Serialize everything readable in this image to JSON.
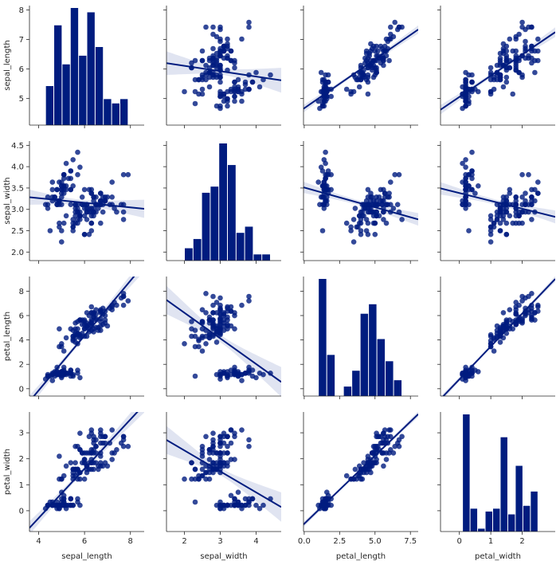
{
  "chart_data": {
    "type": "pairplot",
    "variables": [
      "sepal_length",
      "sepal_width",
      "petal_length",
      "petal_width"
    ],
    "colors": {
      "marks": "#001c7f",
      "ci_band": "#dde1ef",
      "axes": "#262626"
    },
    "axes": [
      {
        "name": "sepal_length",
        "range": [
          3.6,
          8.6
        ],
        "ticks": [
          4,
          6,
          8
        ],
        "diag_ylim": [
          4.1,
          8.15
        ],
        "diag_ticks": [
          5,
          6,
          7,
          8
        ]
      },
      {
        "name": "sepal_width",
        "range": [
          1.5,
          4.7
        ],
        "ticks": [
          2,
          3,
          4
        ],
        "diag_ylim": [
          1.8,
          4.6
        ],
        "diag_ticks": [
          2.0,
          2.5,
          3.0,
          3.5,
          4.0,
          4.5
        ]
      },
      {
        "name": "petal_length",
        "range": [
          -0.05,
          8.05
        ],
        "ticks": [
          0.0,
          2.5,
          5.0,
          7.5
        ],
        "diag_ylim": [
          -0.6,
          9.2
        ],
        "diag_ticks": [
          0,
          2,
          4,
          6,
          8
        ]
      },
      {
        "name": "petal_width",
        "range": [
          -0.6,
          3.05
        ],
        "ticks": [
          0,
          1,
          2
        ],
        "diag_ylim": [
          -0.8,
          3.8
        ],
        "diag_ticks": [
          0,
          1,
          2,
          3
        ]
      }
    ],
    "histograms": [
      {
        "variable": "sepal_length",
        "bin_edges": [
          4.3,
          4.66,
          5.02,
          5.38,
          5.74,
          6.1,
          6.46,
          6.82,
          7.18,
          7.54,
          7.9
        ],
        "counts": [
          9,
          23,
          14,
          27,
          16,
          26,
          18,
          6,
          5,
          6
        ]
      },
      {
        "variable": "sepal_width",
        "bin_edges": [
          2.0,
          2.24,
          2.48,
          2.72,
          2.96,
          3.2,
          3.44,
          3.68,
          3.92,
          4.16,
          4.4
        ],
        "counts": [
          4,
          7,
          22,
          24,
          38,
          31,
          9,
          11,
          2,
          2
        ]
      },
      {
        "variable": "petal_length",
        "bin_edges": [
          1.0,
          1.59,
          2.18,
          2.77,
          3.36,
          3.95,
          4.54,
          5.13,
          5.72,
          6.31,
          6.9
        ],
        "counts": [
          37,
          13,
          0,
          3,
          8,
          26,
          29,
          18,
          11,
          5
        ]
      },
      {
        "variable": "petal_width",
        "bin_edges": [
          0.1,
          0.34,
          0.58,
          0.82,
          1.06,
          1.3,
          1.54,
          1.78,
          2.02,
          2.26,
          2.5
        ],
        "counts": [
          41,
          8,
          1,
          7,
          8,
          33,
          6,
          23,
          9,
          14
        ]
      }
    ],
    "points": {
      "sepal_length": [
        5.1,
        4.9,
        4.7,
        4.6,
        5.0,
        5.4,
        4.6,
        5.0,
        4.4,
        4.9,
        5.4,
        4.8,
        4.8,
        4.3,
        5.8,
        5.7,
        5.4,
        5.1,
        5.7,
        5.1,
        5.4,
        5.1,
        4.6,
        5.1,
        4.8,
        5.0,
        5.0,
        5.2,
        5.2,
        4.7,
        4.8,
        5.4,
        5.2,
        5.5,
        4.9,
        5.0,
        5.5,
        4.9,
        4.4,
        5.1,
        5.0,
        4.5,
        4.4,
        5.0,
        5.1,
        4.8,
        5.1,
        4.6,
        5.3,
        5.0,
        7.0,
        6.4,
        6.9,
        5.5,
        6.5,
        5.7,
        6.3,
        4.9,
        6.6,
        5.2,
        5.0,
        5.9,
        6.0,
        6.1,
        5.6,
        6.7,
        5.6,
        5.8,
        6.2,
        5.6,
        5.9,
        6.1,
        6.3,
        6.1,
        6.4,
        6.6,
        6.8,
        6.7,
        6.0,
        5.7,
        5.5,
        5.5,
        5.8,
        6.0,
        5.4,
        6.0,
        6.7,
        6.3,
        5.6,
        5.5,
        5.5,
        6.1,
        5.8,
        5.0,
        5.6,
        5.7,
        5.7,
        6.2,
        5.1,
        5.7,
        6.3,
        5.8,
        7.1,
        6.3,
        6.5,
        7.6,
        4.9,
        7.3,
        6.7,
        7.2,
        6.5,
        6.4,
        6.8,
        5.7,
        5.8,
        6.4,
        6.5,
        7.7,
        7.7,
        6.0,
        6.9,
        5.6,
        7.7,
        6.3,
        6.7,
        7.2,
        6.2,
        6.1,
        6.4,
        7.2,
        7.4,
        7.9,
        6.4,
        6.3,
        6.1,
        7.7,
        6.3,
        6.4,
        6.0,
        6.9,
        6.7,
        6.9,
        5.8,
        6.8,
        6.7,
        6.7,
        6.3,
        6.5,
        6.2,
        5.9
      ],
      "sepal_width": [
        3.5,
        3.0,
        3.2,
        3.1,
        3.6,
        3.9,
        3.4,
        3.4,
        2.9,
        3.1,
        3.7,
        3.4,
        3.0,
        3.0,
        4.0,
        4.4,
        3.9,
        3.5,
        3.8,
        3.8,
        3.4,
        3.7,
        3.6,
        3.3,
        3.4,
        3.0,
        3.4,
        3.5,
        3.4,
        3.2,
        3.1,
        3.4,
        4.1,
        4.2,
        3.1,
        3.2,
        3.5,
        3.6,
        3.0,
        3.4,
        3.5,
        2.3,
        3.2,
        3.5,
        3.8,
        3.0,
        3.8,
        3.2,
        3.7,
        3.3,
        3.2,
        3.2,
        3.1,
        2.3,
        2.8,
        2.8,
        3.3,
        2.4,
        2.9,
        2.7,
        2.0,
        3.0,
        2.2,
        2.9,
        2.9,
        3.1,
        3.0,
        2.7,
        2.2,
        2.5,
        3.2,
        2.8,
        2.5,
        2.8,
        2.9,
        3.0,
        2.8,
        3.0,
        2.9,
        2.6,
        2.4,
        2.4,
        2.7,
        2.7,
        3.0,
        3.4,
        3.1,
        2.3,
        3.0,
        2.5,
        2.6,
        3.0,
        2.6,
        2.3,
        2.7,
        3.0,
        2.9,
        2.9,
        2.5,
        2.8,
        3.3,
        2.7,
        3.0,
        2.9,
        3.0,
        3.0,
        2.5,
        2.9,
        2.5,
        3.6,
        3.2,
        2.7,
        3.0,
        2.5,
        2.8,
        3.2,
        3.0,
        3.8,
        2.6,
        2.2,
        3.2,
        2.8,
        2.8,
        2.7,
        3.3,
        3.2,
        2.8,
        3.0,
        2.8,
        3.0,
        2.8,
        3.8,
        2.8,
        2.8,
        2.6,
        3.0,
        3.4,
        3.1,
        3.0,
        3.1,
        3.1,
        3.1,
        2.7,
        3.2,
        3.3,
        3.0,
        2.5,
        3.0,
        3.4,
        3.0
      ],
      "petal_length": [
        1.4,
        1.4,
        1.3,
        1.5,
        1.4,
        1.7,
        1.4,
        1.5,
        1.4,
        1.5,
        1.5,
        1.6,
        1.4,
        1.1,
        1.2,
        1.5,
        1.3,
        1.4,
        1.7,
        1.5,
        1.7,
        1.5,
        1.0,
        1.7,
        1.9,
        1.6,
        1.6,
        1.5,
        1.4,
        1.6,
        1.6,
        1.5,
        1.5,
        1.4,
        1.5,
        1.2,
        1.3,
        1.4,
        1.3,
        1.5,
        1.3,
        1.3,
        1.3,
        1.6,
        1.9,
        1.4,
        1.6,
        1.4,
        1.5,
        1.4,
        4.7,
        4.5,
        4.9,
        4.0,
        4.6,
        4.5,
        4.7,
        3.3,
        4.6,
        3.9,
        3.5,
        4.2,
        4.0,
        4.7,
        3.6,
        4.4,
        4.5,
        4.1,
        4.5,
        3.9,
        4.8,
        4.0,
        4.9,
        4.7,
        4.3,
        4.4,
        4.8,
        5.0,
        4.5,
        3.5,
        3.8,
        3.7,
        3.9,
        5.1,
        4.5,
        4.5,
        4.7,
        4.4,
        4.1,
        4.0,
        4.4,
        4.6,
        4.0,
        3.3,
        4.2,
        4.2,
        4.2,
        4.3,
        3.0,
        4.1,
        6.0,
        5.1,
        5.9,
        5.6,
        5.8,
        6.6,
        4.5,
        6.3,
        5.8,
        6.1,
        5.1,
        5.3,
        5.5,
        5.0,
        5.1,
        5.3,
        5.5,
        6.7,
        6.9,
        5.0,
        5.7,
        4.9,
        6.7,
        4.9,
        5.7,
        6.0,
        4.8,
        4.9,
        5.6,
        5.8,
        6.1,
        6.4,
        5.6,
        5.1,
        5.6,
        6.1,
        5.6,
        5.5,
        4.8,
        5.4,
        5.6,
        5.1,
        5.1,
        5.9,
        5.7,
        5.2,
        5.0,
        5.2,
        5.4,
        5.1
      ],
      "petal_width": [
        0.2,
        0.2,
        0.2,
        0.2,
        0.2,
        0.4,
        0.3,
        0.2,
        0.2,
        0.1,
        0.2,
        0.2,
        0.1,
        0.1,
        0.2,
        0.4,
        0.4,
        0.3,
        0.3,
        0.3,
        0.2,
        0.4,
        0.2,
        0.5,
        0.2,
        0.2,
        0.4,
        0.2,
        0.2,
        0.2,
        0.2,
        0.4,
        0.1,
        0.2,
        0.2,
        0.2,
        0.2,
        0.1,
        0.2,
        0.2,
        0.3,
        0.3,
        0.2,
        0.6,
        0.4,
        0.3,
        0.2,
        0.2,
        0.2,
        0.2,
        1.4,
        1.5,
        1.5,
        1.3,
        1.5,
        1.3,
        1.6,
        1.0,
        1.3,
        1.4,
        1.0,
        1.5,
        1.0,
        1.4,
        1.3,
        1.4,
        1.5,
        1.0,
        1.5,
        1.1,
        1.8,
        1.3,
        1.5,
        1.2,
        1.3,
        1.4,
        1.4,
        1.7,
        1.5,
        1.0,
        1.1,
        1.0,
        1.2,
        1.6,
        1.5,
        1.6,
        1.5,
        1.3,
        1.3,
        1.3,
        1.2,
        1.4,
        1.2,
        1.0,
        1.3,
        1.2,
        1.3,
        1.3,
        1.1,
        1.3,
        2.5,
        1.9,
        2.1,
        1.8,
        2.2,
        2.1,
        1.7,
        1.8,
        1.8,
        2.5,
        2.0,
        1.9,
        2.1,
        2.0,
        2.4,
        2.3,
        1.8,
        2.2,
        2.3,
        1.5,
        2.3,
        2.0,
        2.0,
        1.8,
        2.1,
        1.8,
        1.8,
        1.8,
        2.1,
        1.6,
        1.9,
        2.0,
        2.2,
        1.5,
        1.4,
        2.3,
        2.4,
        1.8,
        1.8,
        2.1,
        2.4,
        2.3,
        1.9,
        2.3,
        2.5,
        2.3,
        1.9,
        2.0,
        2.3,
        1.8
      ]
    }
  }
}
